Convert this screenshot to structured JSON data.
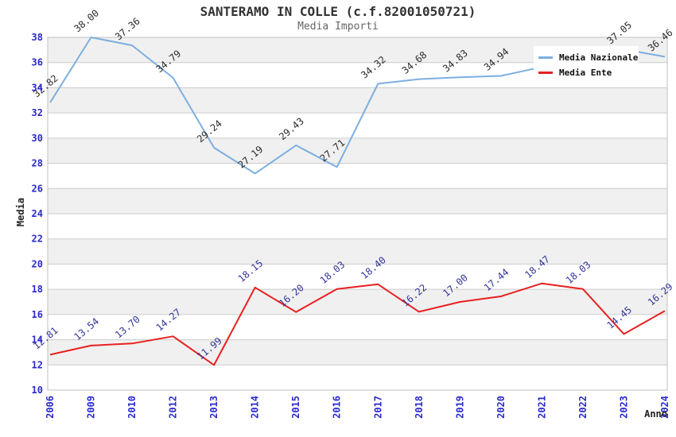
{
  "header": {
    "title": "SANTERAMO IN COLLE (c.f.82001050721)",
    "subtitle": "Media Importi"
  },
  "legend": {
    "position": "top-right",
    "items": [
      {
        "label": "Media Nazionale",
        "color": "#7daee0"
      },
      {
        "label": "Media Ente",
        "color": "#e82020"
      }
    ]
  },
  "axes": {
    "y_label": "Media",
    "x_label": "Anno",
    "tick_color": "#2a2acc"
  },
  "colors": {
    "band_gray": "#f0f0f0",
    "band_white": "#ffffff",
    "gridline": "#cccccc",
    "plot_border": "#c0c0c0",
    "title": "#333333",
    "subtitle": "#666666"
  },
  "chart_data": {
    "type": "line",
    "title": "SANTERAMO IN COLLE (c.f.82001050721)",
    "subtitle": "Media Importi",
    "xlabel": "Anno",
    "ylabel": "Media",
    "x": [
      "2006",
      "2009",
      "2010",
      "2012",
      "2013",
      "2014",
      "2015",
      "2016",
      "2017",
      "2018",
      "2019",
      "2020",
      "2021",
      "2022",
      "2023",
      "2024"
    ],
    "series": [
      {
        "name": "Media Nazionale",
        "color": "#7daee0",
        "label_color": "#2a2a2a",
        "values": [
          32.82,
          38.0,
          37.36,
          34.79,
          29.24,
          27.19,
          29.43,
          27.71,
          34.32,
          34.68,
          34.83,
          34.94,
          null,
          null,
          37.05,
          36.46
        ],
        "note": "values for 2021 and 2022 are hidden behind the legend box in the screenshot"
      },
      {
        "name": "Media Ente",
        "color": "#e82020",
        "label_color": "#333399",
        "values": [
          12.81,
          13.54,
          13.7,
          14.27,
          11.99,
          18.15,
          16.2,
          18.03,
          18.4,
          16.22,
          17.0,
          17.44,
          18.47,
          18.03,
          14.45,
          16.29
        ]
      }
    ],
    "ylim": [
      10,
      38
    ],
    "yticks": [
      10,
      12,
      14,
      16,
      18,
      20,
      22,
      24,
      26,
      28,
      30,
      32,
      34,
      36,
      38
    ],
    "grid": "horizontal",
    "plot_background": "alternating gray/white bands every 2 units",
    "legend_position": "top-right",
    "data_labels": "rotated -40deg above each point, 2 decimals"
  }
}
